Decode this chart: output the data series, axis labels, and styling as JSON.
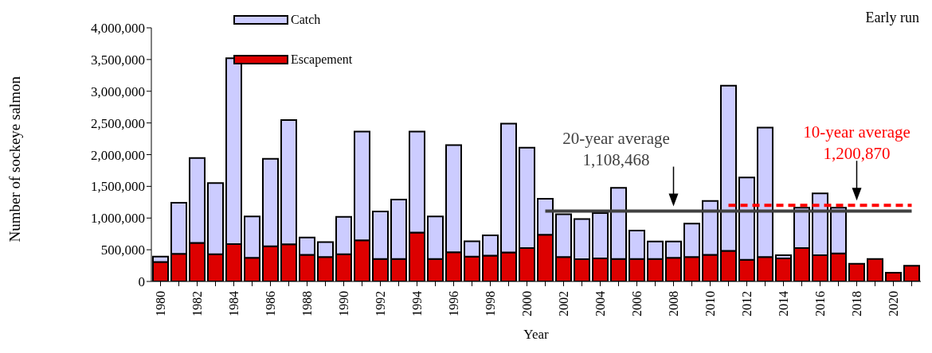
{
  "chart_data": {
    "type": "bar",
    "stacked": true,
    "annotations": [
      "Early run"
    ],
    "xlabel": "Year",
    "ylabel": "Number of sockeye salmon",
    "categories": [
      "1980",
      null,
      "1982",
      null,
      "1984",
      null,
      "1986",
      null,
      "1988",
      null,
      "1990",
      null,
      "1992",
      null,
      "1994",
      null,
      "1996",
      null,
      "1998",
      null,
      "2000",
      null,
      "2002",
      null,
      "2004",
      null,
      "2006",
      null,
      "2008",
      null,
      "2010",
      null,
      "2012",
      null,
      "2014",
      null,
      "2016",
      null,
      "2018",
      null,
      "2020",
      null
    ],
    "series": [
      {
        "name": "Escapement",
        "color": "#dd0000",
        "values": [
          308000,
          436000,
          607000,
          428000,
          590000,
          372000,
          556000,
          586000,
          419000,
          385000,
          428000,
          650000,
          355000,
          355000,
          770000,
          355000,
          462000,
          393000,
          406000,
          458000,
          526000,
          736000,
          385000,
          351000,
          364000,
          355000,
          355000,
          355000,
          372000,
          385000,
          419000,
          483000,
          342000,
          385000,
          364000,
          526000,
          415000,
          441000,
          278000,
          355000,
          137000,
          248000
        ]
      },
      {
        "name": "Catch",
        "color": "#ccccff",
        "values": [
          85000,
          804000,
          1339000,
          1125000,
          2930000,
          654000,
          1377000,
          1959000,
          274000,
          235000,
          590000,
          1715000,
          748000,
          937000,
          1595000,
          671000,
          1689000,
          240000,
          321000,
          2031000,
          1583000,
          568000,
          676000,
          633000,
          714000,
          1121000,
          449000,
          274000,
          257000,
          526000,
          851000,
          2605000,
          1296000,
          2040000,
          51000,
          637000,
          975000,
          722000,
          null,
          null,
          null,
          null
        ]
      },
      {
        "type": "line",
        "name": "20-year average\n1,108,468",
        "color": "#404040",
        "line_style": "solid",
        "values": [
          null,
          null,
          null,
          null,
          null,
          null,
          null,
          null,
          null,
          null,
          null,
          null,
          null,
          null,
          null,
          null,
          null,
          null,
          null,
          null,
          null,
          1108468,
          1108468,
          1108468,
          1108468,
          1108468,
          1108468,
          1108468,
          1108468,
          1108468,
          1108468,
          1108468,
          1108468,
          1108468,
          1108468,
          1108468,
          1108468,
          1108468,
          1108468,
          1108468,
          1108468,
          1108468
        ]
      },
      {
        "type": "line",
        "name": "10-year average\n1,200,870",
        "color": "#ff0000",
        "line_style": "dashed",
        "values": [
          null,
          null,
          null,
          null,
          null,
          null,
          null,
          null,
          null,
          null,
          null,
          null,
          null,
          null,
          null,
          null,
          null,
          null,
          null,
          null,
          null,
          null,
          null,
          null,
          null,
          null,
          null,
          null,
          null,
          null,
          null,
          1200870,
          1200870,
          1200870,
          1200870,
          1200870,
          1200870,
          1200870,
          1200870,
          1200870,
          1200870,
          1200870
        ]
      }
    ],
    "ylim": [
      0,
      4000000
    ],
    "yticks": [
      0,
      {
        "value": 500000,
        "label": "500,000"
      },
      {
        "value": 1000000,
        "label": "1,000,000"
      },
      {
        "value": 1500000,
        "label": "1,500,000"
      },
      {
        "value": 2000000,
        "label": "2,000,000"
      },
      {
        "value": 2500000,
        "label": "2,500,000"
      },
      {
        "value": 3000000,
        "label": "3,000,000"
      },
      {
        "value": 3500000,
        "label": "3,500,000"
      },
      {
        "value": 4000000,
        "label": "4,000,000"
      }
    ],
    "legend": "top"
  }
}
